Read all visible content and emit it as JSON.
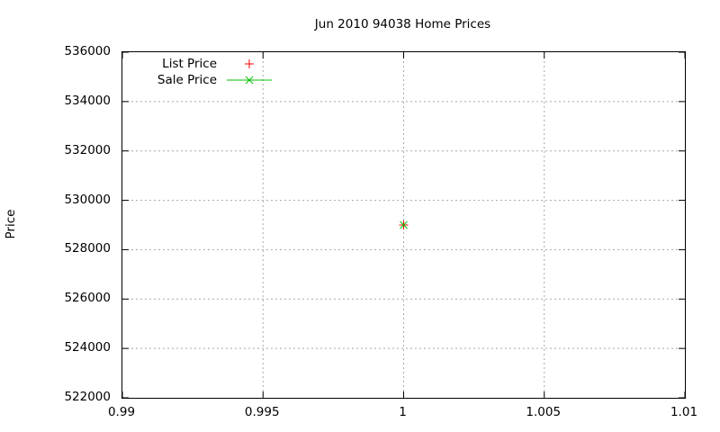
{
  "colors": {
    "background": "#ffffff",
    "axis": "#000000",
    "grid": "#a8a8a8",
    "text": "#000000",
    "list_price": "#ff0000",
    "sale_price": "#00c000"
  },
  "chart_data": {
    "type": "scatter",
    "title": "Jun 2010 94038 Home Prices",
    "xlabel": "",
    "ylabel": "Price",
    "xlim": [
      0.99,
      1.01
    ],
    "ylim": [
      522000,
      536000
    ],
    "xticks": [
      0.99,
      0.995,
      1,
      1.005,
      1.01
    ],
    "xtick_labels": [
      "0.99",
      "0.995",
      "1",
      "1.005",
      "1.01"
    ],
    "yticks": [
      522000,
      524000,
      526000,
      528000,
      530000,
      532000,
      534000,
      536000
    ],
    "ytick_labels": [
      "522000",
      "524000",
      "526000",
      "528000",
      "530000",
      "532000",
      "534000",
      "536000"
    ],
    "grid": true,
    "grid_style": "dashed",
    "legend_position": "top-left-inside",
    "series": [
      {
        "name": "List Price",
        "style": "points",
        "marker": "plus",
        "color": "#ff0000",
        "points": [
          {
            "x": 1,
            "y": 529000
          }
        ]
      },
      {
        "name": "Sale Price",
        "style": "linespoints",
        "marker": "x",
        "color": "#00c000",
        "points": [
          {
            "x": 1,
            "y": 529000
          }
        ]
      }
    ]
  }
}
